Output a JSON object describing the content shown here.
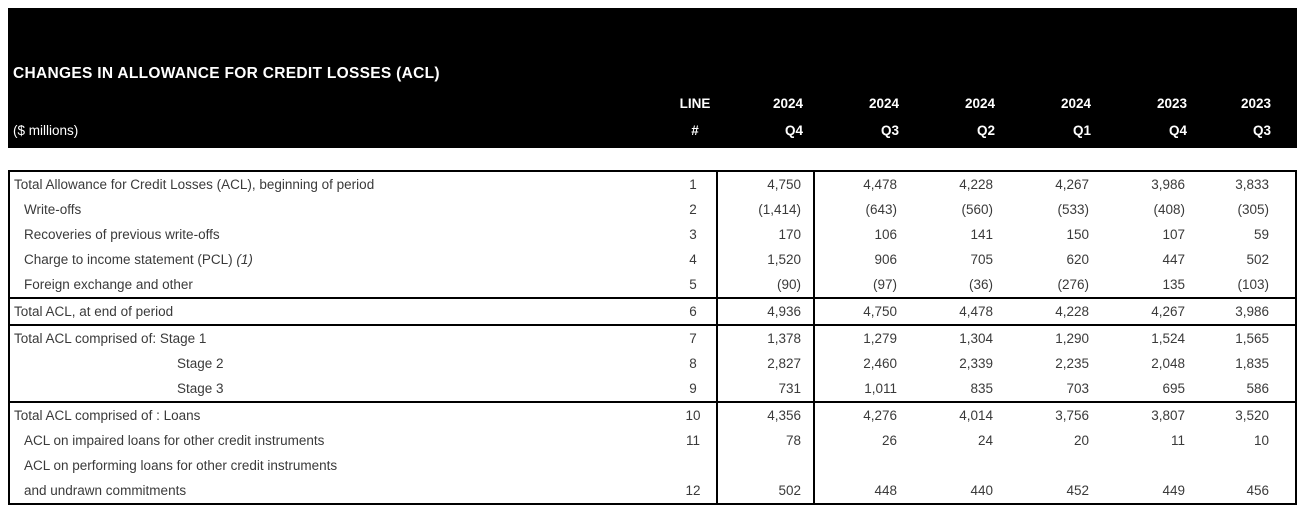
{
  "page": {
    "band_bg": "#000000",
    "text_color": "#3a3a3a",
    "border_color": "#000000"
  },
  "header": {
    "title": "CHANGES IN ALLOWANCE FOR CREDIT LOSSES (ACL)",
    "units_label": "($ millions)",
    "line_label": "LINE",
    "line_hash_label": "#",
    "columns": [
      {
        "year": "2024",
        "quarter": "Q4"
      },
      {
        "year": "2024",
        "quarter": "Q3"
      },
      {
        "year": "2024",
        "quarter": "Q2"
      },
      {
        "year": "2024",
        "quarter": "Q1"
      },
      {
        "year": "2023",
        "quarter": "Q4"
      },
      {
        "year": "2023",
        "quarter": "Q3"
      }
    ]
  },
  "table": {
    "sections": [
      {
        "name": "activity",
        "rows": [
          {
            "label": "Total Allowance for Credit Losses (ACL), beginning of period",
            "note": "",
            "indent": "none",
            "line": "1",
            "values": [
              "4,750",
              "4,478",
              "4,228",
              "4,267",
              "3,986",
              "3,833"
            ]
          },
          {
            "label": "Write-offs",
            "note": "",
            "indent": "sub",
            "line": "2",
            "values": [
              "(1,414)",
              "(643)",
              "(560)",
              "(533)",
              "(408)",
              "(305)"
            ]
          },
          {
            "label": "Recoveries of previous write-offs",
            "note": "",
            "indent": "sub",
            "line": "3",
            "values": [
              "170",
              "106",
              "141",
              "150",
              "107",
              "59"
            ]
          },
          {
            "label": "Charge to income statement (PCL)",
            "note": "(1)",
            "indent": "sub",
            "line": "4",
            "values": [
              "1,520",
              "906",
              "705",
              "620",
              "447",
              "502"
            ]
          },
          {
            "label": "Foreign exchange and other",
            "note": "",
            "indent": "sub",
            "line": "5",
            "values": [
              "(90)",
              "(97)",
              "(36)",
              "(276)",
              "135",
              "(103)"
            ]
          }
        ]
      },
      {
        "name": "total-end-of-period",
        "rows": [
          {
            "label": "Total ACL, at end of period",
            "note": "",
            "indent": "none",
            "line": "6",
            "values": [
              "4,936",
              "4,750",
              "4,478",
              "4,228",
              "4,267",
              "3,986"
            ]
          }
        ]
      },
      {
        "name": "stages",
        "rows": [
          {
            "label": "Total ACL comprised of: Stage 1",
            "note": "",
            "indent": "none",
            "line": "7",
            "values": [
              "1,378",
              "1,279",
              "1,304",
              "1,290",
              "1,524",
              "1,565"
            ]
          },
          {
            "label": "Stage 2",
            "note": "",
            "indent": "stage",
            "line": "8",
            "values": [
              "2,827",
              "2,460",
              "2,339",
              "2,235",
              "2,048",
              "1,835"
            ]
          },
          {
            "label": "Stage 3",
            "note": "",
            "indent": "stage",
            "line": "9",
            "values": [
              "731",
              "1,011",
              "835",
              "703",
              "695",
              "586"
            ]
          }
        ]
      },
      {
        "name": "composition",
        "rows": [
          {
            "label": "Total ACL comprised of : Loans",
            "note": "",
            "indent": "none",
            "line": "10",
            "values": [
              "4,356",
              "4,276",
              "4,014",
              "3,756",
              "3,807",
              "3,520"
            ]
          },
          {
            "label": "ACL on impaired loans for other credit instruments",
            "note": "",
            "indent": "sub",
            "line": "11",
            "values": [
              "78",
              "26",
              "24",
              "20",
              "11",
              "10"
            ]
          },
          {
            "label": "ACL on performing loans for other credit instruments",
            "note": "",
            "indent": "sub",
            "line": "",
            "values": [
              "",
              "",
              "",
              "",
              "",
              ""
            ]
          },
          {
            "label": "and undrawn commitments",
            "note": "",
            "indent": "sub",
            "line": "12",
            "values": [
              "502",
              "448",
              "440",
              "452",
              "449",
              "456"
            ]
          }
        ]
      }
    ]
  }
}
